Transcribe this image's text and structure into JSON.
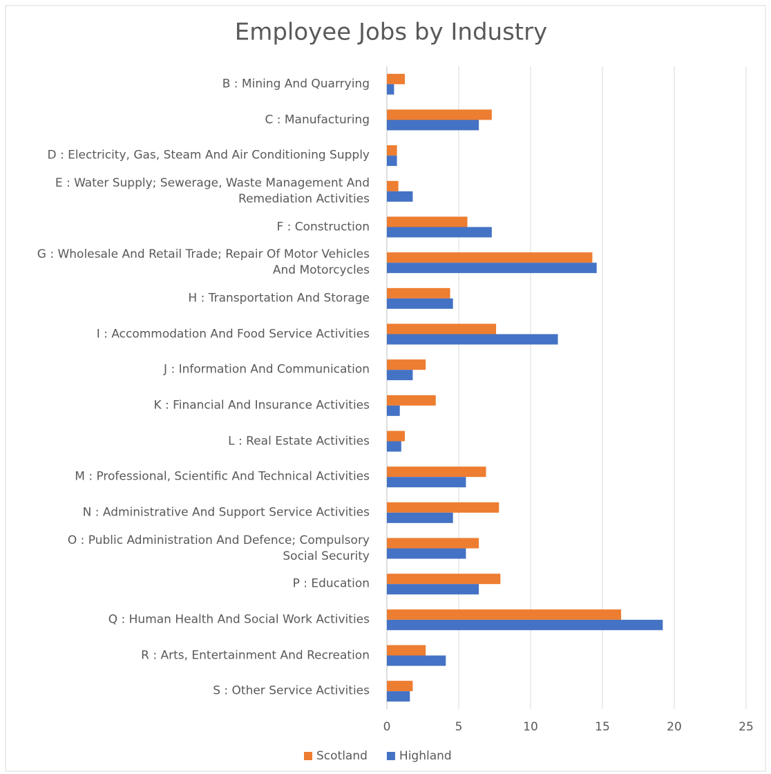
{
  "chart_data": {
    "type": "hbar",
    "title": "Employee Jobs by Industry",
    "categories": [
      "B : Mining And Quarrying",
      "C : Manufacturing",
      "D : Electricity, Gas, Steam And Air Conditioning Supply",
      "E : Water Supply; Sewerage, Waste Management And Remediation Activities",
      "F : Construction",
      "G : Wholesale And Retail Trade; Repair Of Motor Vehicles And Motorcycles",
      "H : Transportation And Storage",
      "I : Accommodation And Food Service Activities",
      "J : Information And Communication",
      "K : Financial And Insurance Activities",
      "L : Real Estate Activities",
      "M : Professional, Scientific And Technical Activities",
      "N : Administrative And Support Service Activities",
      "O : Public Administration And Defence; Compulsory Social Security",
      "P : Education",
      "Q : Human Health And Social Work Activities",
      "R : Arts, Entertainment And Recreation",
      "S : Other Service Activities"
    ],
    "series": [
      {
        "name": "Scotland",
        "color": "#ED7D31",
        "values": [
          1.25,
          7.3,
          0.7,
          0.8,
          5.6,
          14.3,
          4.4,
          7.6,
          2.7,
          3.4,
          1.25,
          6.9,
          7.8,
          6.4,
          7.9,
          16.3,
          2.7,
          1.8
        ]
      },
      {
        "name": "Highland",
        "color": "#4472C4",
        "values": [
          0.5,
          6.4,
          0.7,
          1.8,
          7.3,
          14.6,
          4.6,
          11.9,
          1.8,
          0.9,
          1.0,
          5.5,
          4.6,
          5.5,
          6.4,
          19.2,
          4.1,
          1.6
        ]
      }
    ],
    "xlim": [
      0,
      25
    ],
    "xticks": [
      0,
      5,
      10,
      15,
      20,
      25
    ],
    "grid": true,
    "legend": "bottom"
  }
}
